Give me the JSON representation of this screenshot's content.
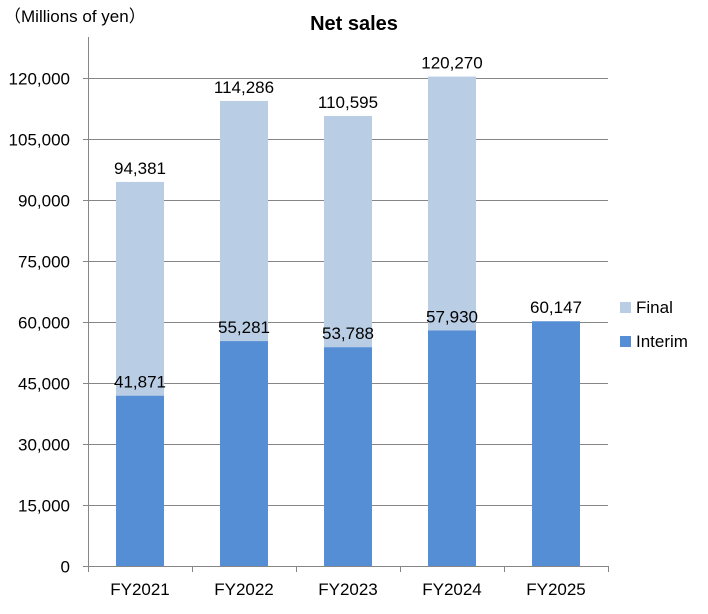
{
  "chart_data": {
    "type": "bar",
    "stacked": true,
    "title": "Net sales",
    "unit_label": "（Millions of yen）",
    "xlabel": "",
    "ylabel": "",
    "ylim": [
      0,
      130000
    ],
    "y_ticks": [
      0,
      15000,
      30000,
      45000,
      60000,
      75000,
      90000,
      105000,
      120000
    ],
    "y_tick_labels": [
      "0",
      "15,000",
      "30,000",
      "45,000",
      "60,000",
      "75,000",
      "90,000",
      "105,000",
      "120,000"
    ],
    "grid": true,
    "legend_position": "right",
    "categories": [
      "FY2021",
      "FY2022",
      "FY2023",
      "FY2024",
      "FY2025"
    ],
    "series": [
      {
        "name": "Interim",
        "values": [
          41871,
          55281,
          53788,
          57930,
          60147
        ],
        "color": "#558ED5"
      },
      {
        "name": "Final",
        "values": [
          52510,
          59005,
          56807,
          62340,
          null
        ],
        "color": "#B9CDE5"
      }
    ],
    "interim_labels": [
      "41,871",
      "55,281",
      "53,788",
      "57,930",
      "60,147"
    ],
    "total_labels": [
      "94,381",
      "114,286",
      "110,595",
      "120,270",
      ""
    ],
    "legend": [
      {
        "name": "Final",
        "color": "#B9CDE5"
      },
      {
        "name": "Interim",
        "color": "#558ED5"
      }
    ]
  }
}
